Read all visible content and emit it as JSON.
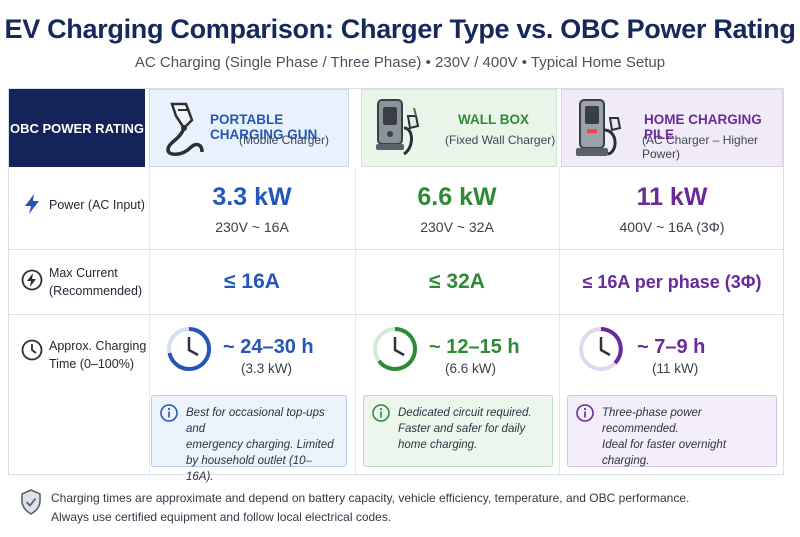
{
  "header": {
    "title": "EV Charging Comparison: Charger Type vs. OBC Power Rating",
    "subtitle": "AC Charging (Single Phase / Three Phase) • 230V / 400V • Typical Home Setup"
  },
  "table": {
    "corner_label": "OBC POWER RATING",
    "columns": [
      {
        "title": "PORTABLE CHARGING GUN",
        "subtitle": "(Mobile Charger)",
        "color": "#2456b8"
      },
      {
        "title": "WALL BOX",
        "subtitle": "(Fixed Wall Charger)",
        "color": "#2e8a36"
      },
      {
        "title": "HOME CHARGING PILE",
        "subtitle": "(AC Charger – Higher Power)",
        "color": "#6a2a9a"
      }
    ],
    "rows": {
      "power": {
        "label": "Power (AC Input)",
        "icon": "lightning-bolt-icon",
        "values": [
          {
            "main": "3.3 kW",
            "sub": "230V ~ 16A"
          },
          {
            "main": "6.6 kW",
            "sub": "230V ~ 32A"
          },
          {
            "main": "11 kW",
            "sub": "400V ~ 16A (3Φ)"
          }
        ]
      },
      "current": {
        "label_line1": "Max Current",
        "label_line2": "(Recommended)",
        "icon": "lightning-circle-icon",
        "values": [
          "≤ 16A",
          "≤ 32A",
          "≤ 16A per phase (3Φ)"
        ]
      },
      "time": {
        "label_line1": "Approx. Charging",
        "label_line2": "Time (0–100%)",
        "icon": "clock-icon",
        "values": [
          {
            "main": "~ 24–30 h",
            "sub": "(3.3 kW)"
          },
          {
            "main": "~ 12–15 h",
            "sub": "(6.6 kW)"
          },
          {
            "main": "~ 7–9 h",
            "sub": "(11 kW)"
          }
        ]
      }
    },
    "notes": [
      [
        "Best for occasional top-ups and",
        "emergency charging. Limited",
        "by household outlet (10–16A)."
      ],
      [
        "Dedicated circuit required.",
        "Faster and safer for daily",
        "home charging."
      ],
      [
        "Three-phase power recommended.",
        "Ideal for faster overnight",
        "charging."
      ]
    ]
  },
  "footer": {
    "line1": "Charging times are approximate and depend on battery capacity, vehicle efficiency, temperature, and OBC performance.",
    "line2": "Always use certified equipment and follow local electrical codes.",
    "icon": "shield-check-icon"
  },
  "colors": {
    "navy": "#13245a",
    "blue": "#2456b8",
    "green": "#2e8a36",
    "purple": "#6a2a9a"
  }
}
